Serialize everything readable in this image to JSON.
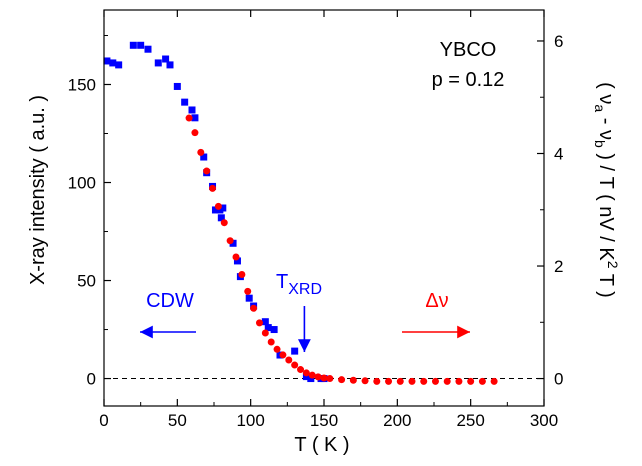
{
  "chart_data": {
    "type": "scatter",
    "xlabel": "T ( K )",
    "xlim": [
      0,
      300
    ],
    "xticks": [
      0,
      50,
      100,
      150,
      200,
      250,
      300
    ],
    "y_left": {
      "label": "X-ray intensity ( a.u. )",
      "ylim": [
        -14,
        188
      ],
      "ticks": [
        0,
        50,
        100,
        150
      ]
    },
    "y_right": {
      "label_parts": [
        "( ν",
        "a",
        " - ν",
        "b",
        " ) / T ( nV / K",
        "2",
        " T )"
      ],
      "ylim": [
        -0.4878,
        6.5505
      ],
      "ticks": [
        0,
        2,
        4,
        6
      ]
    },
    "reference_line": {
      "axis": "y_left",
      "value": 0,
      "style": "dashed"
    },
    "series": [
      {
        "axis": "y_left",
        "marker": "square",
        "color": "#0000ff",
        "points": [
          [
            2,
            162
          ],
          [
            6,
            161
          ],
          [
            10,
            160
          ],
          [
            20,
            170
          ],
          [
            25,
            170
          ],
          [
            30,
            168
          ],
          [
            37,
            161
          ],
          [
            42,
            163
          ],
          [
            45,
            160
          ],
          [
            50,
            149
          ],
          [
            55,
            141
          ],
          [
            60,
            137
          ],
          [
            62,
            133
          ],
          [
            68,
            113
          ],
          [
            70,
            105
          ],
          [
            74,
            98
          ],
          [
            76,
            86
          ],
          [
            79,
            86
          ],
          [
            80,
            82
          ],
          [
            81,
            87
          ],
          [
            88,
            69
          ],
          [
            91,
            60
          ],
          [
            93,
            52
          ],
          [
            99,
            41
          ],
          [
            102,
            37
          ],
          [
            110,
            29
          ],
          [
            112,
            26
          ],
          [
            116,
            25
          ],
          [
            120,
            12
          ],
          [
            130,
            14
          ],
          [
            138,
            1
          ],
          [
            141,
            0
          ],
          [
            148,
            0
          ],
          [
            150,
            0
          ]
        ]
      },
      {
        "axis": "y_right",
        "marker": "circle",
        "color": "#ff0000",
        "points": [
          [
            58,
            4.63
          ],
          [
            62,
            4.37
          ],
          [
            66,
            4.02
          ],
          [
            70,
            3.69
          ],
          [
            74,
            3.38
          ],
          [
            78,
            3.06
          ],
          [
            82,
            2.77
          ],
          [
            86,
            2.45
          ],
          [
            90,
            2.16
          ],
          [
            94,
            1.85
          ],
          [
            98,
            1.55
          ],
          [
            102,
            1.25
          ],
          [
            106,
            0.99
          ],
          [
            110,
            0.81
          ],
          [
            114,
            0.65
          ],
          [
            118,
            0.52
          ],
          [
            122,
            0.42
          ],
          [
            126,
            0.33
          ],
          [
            130,
            0.24
          ],
          [
            134,
            0.16
          ],
          [
            138,
            0.1
          ],
          [
            142,
            0.06
          ],
          [
            146,
            0.03
          ],
          [
            150,
            0.01
          ],
          [
            154,
            0.0
          ],
          [
            162,
            -0.02
          ],
          [
            170,
            -0.03
          ],
          [
            178,
            -0.04
          ],
          [
            186,
            -0.05
          ],
          [
            194,
            -0.05
          ],
          [
            202,
            -0.05
          ],
          [
            210,
            -0.05
          ],
          [
            218,
            -0.05
          ],
          [
            226,
            -0.05
          ],
          [
            234,
            -0.05
          ],
          [
            242,
            -0.05
          ],
          [
            250,
            -0.05
          ],
          [
            258,
            -0.05
          ],
          [
            266,
            -0.05
          ]
        ]
      }
    ],
    "annotations": {
      "material": "YBCO",
      "doping": "p = 0.12",
      "cdw_label": "CDW",
      "txrd_main": "T",
      "txrd_sub": "XRD",
      "txrd_arrow_x": 138,
      "delta_label": "Δν",
      "cdw_color": "#0000ff",
      "delta_color": "#ff0000",
      "txrd_color": "#0000ff"
    }
  }
}
